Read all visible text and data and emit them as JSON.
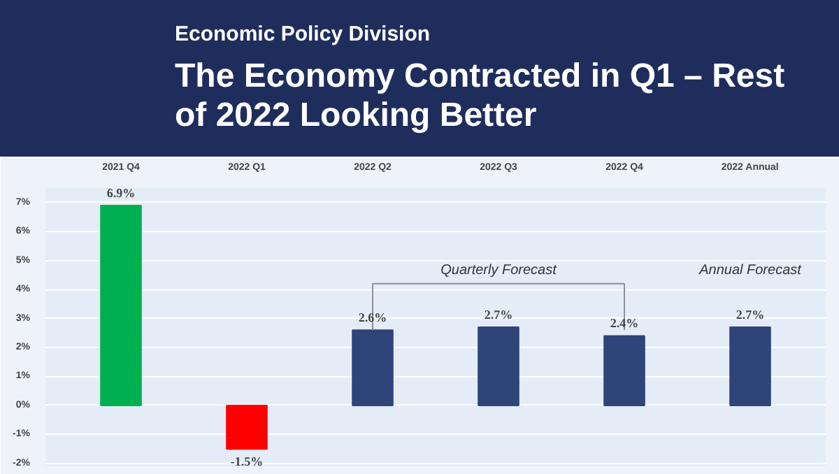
{
  "chart_data": {
    "type": "bar",
    "subtitle": "Economic Policy Division",
    "title": "The Economy Contracted in Q1 – Rest of 2022 Looking Better",
    "categories": [
      "2021 Q4",
      "2022 Q1",
      "2022 Q2",
      "2022 Q3",
      "2022 Q4",
      "2022 Annual"
    ],
    "values": [
      6.9,
      -1.5,
      2.6,
      2.7,
      2.4,
      2.7
    ],
    "colors": [
      "#00b050",
      "#ff0000",
      "#2f4479",
      "#2f4479",
      "#2f4479",
      "#2f4479"
    ],
    "value_labels": [
      "6.9%",
      "-1.5%",
      "2.6%",
      "2.7%",
      "2.4%",
      "2.7%"
    ],
    "ylim": [
      -2.1,
      7.5
    ],
    "yticks": [
      {
        "value": -2,
        "label": "-2%"
      },
      {
        "value": -1,
        "label": "-1%"
      },
      {
        "value": 0,
        "label": "0%"
      },
      {
        "value": 1,
        "label": "1%"
      },
      {
        "value": 2,
        "label": "2%"
      },
      {
        "value": 3,
        "label": "3%"
      },
      {
        "value": 4,
        "label": "4%"
      },
      {
        "value": 5,
        "label": "5%"
      },
      {
        "value": 6,
        "label": "6%"
      },
      {
        "value": 7,
        "label": "7%"
      }
    ],
    "grid": "y",
    "annotations": [
      "Quarterly Forecast",
      "Annual Forecast"
    ]
  }
}
